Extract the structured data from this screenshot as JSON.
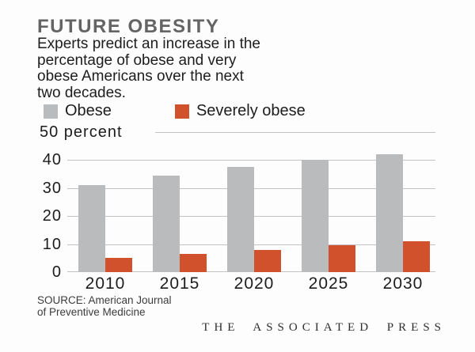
{
  "header": {
    "title": "FUTURE OBESITY",
    "subtitle_lines": [
      "Experts predict an increase in the",
      "percentage of obese and very",
      "obese Americans over the next",
      "two decades."
    ]
  },
  "legend": [
    {
      "label": "Obese",
      "color": "#b9bbbd"
    },
    {
      "label": "Severely obese",
      "color": "#d0512b"
    }
  ],
  "chart_data": {
    "type": "bar",
    "title": "FUTURE OBESITY",
    "categories": [
      "2010",
      "2015",
      "2020",
      "2025",
      "2030"
    ],
    "series": [
      {
        "name": "Obese",
        "color": "#b9bbbd",
        "values": [
          31,
          34.5,
          37.5,
          40,
          42
        ]
      },
      {
        "name": "Severely obese",
        "color": "#d0512b",
        "values": [
          5,
          6.5,
          8,
          9.5,
          11
        ]
      }
    ],
    "xlabel": "",
    "ylabel": "percent",
    "y_axis_top_label": "50 percent",
    "y_ticks": [
      0,
      10,
      20,
      30,
      40,
      50
    ],
    "ylim": [
      0,
      50
    ],
    "grid": true,
    "legend_position": "top-left"
  },
  "footer": {
    "source_lines": [
      "SOURCE: American Journal",
      "of Preventive Medicine"
    ],
    "credit": "THE ASSOCIATED PRESS"
  }
}
